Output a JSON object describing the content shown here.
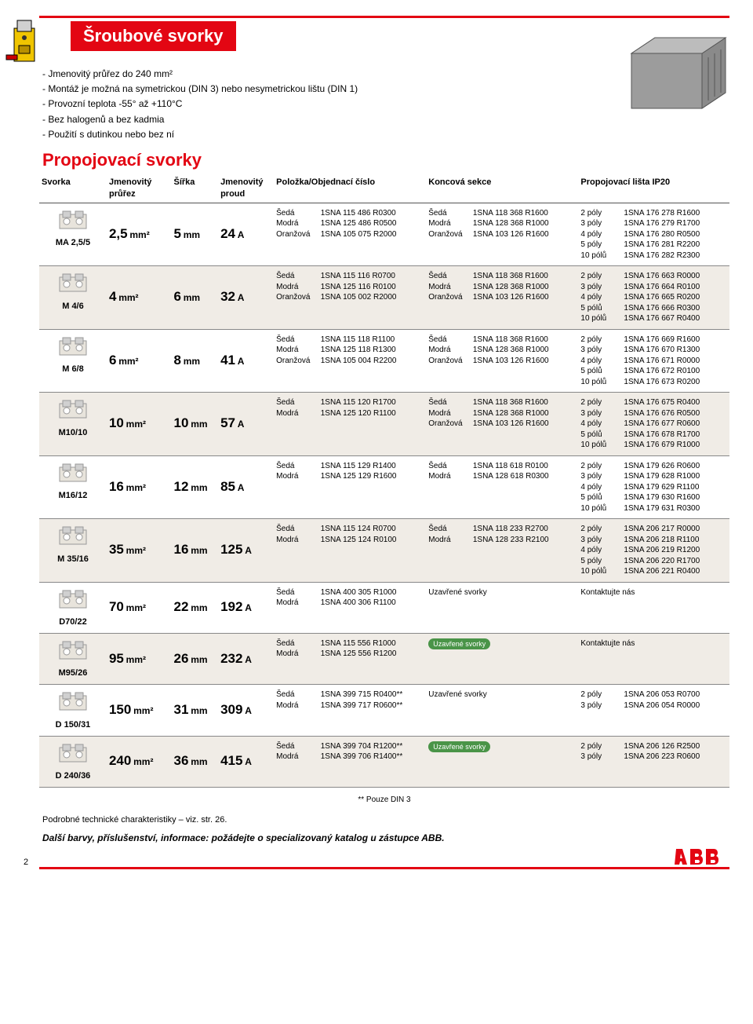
{
  "title": "Šroubové svorky",
  "intro": [
    "- Jmenovitý průřez do 240 mm²",
    "- Montáž je možná na symetrickou (DIN 3) nebo nesymetrickou lištu (DIN 1)",
    "- Provozní teplota -55° až +110°C",
    "- Bez halogenů a bez kadmia",
    "- Použití s dutinkou nebo bez ní"
  ],
  "subtitle": "Propojovací svorky",
  "headers": {
    "svorka": "Svorka",
    "prurez": "Jmenovitý průřez",
    "sirka": "Šířka",
    "proud": "Jmenovitý proud",
    "polozka": "Položka/Objednací číslo",
    "koncova": "Koncová sekce",
    "lista": "Propojovací lišta IP20"
  },
  "rows": [
    {
      "alt": false,
      "model": "MA 2,5/5",
      "prurez": "2,5 mm²",
      "sirka": "5 mm",
      "proud": "24 A",
      "pol": [
        [
          "Šedá",
          "1SNA 115 486 R0300"
        ],
        [
          "Modrá",
          "1SNA 125 486 R0500"
        ],
        [
          "Oranžová",
          "1SNA 105 075 R2000"
        ]
      ],
      "konc": [
        [
          "Šedá",
          "1SNA 118 368 R1600"
        ],
        [
          "Modrá",
          "1SNA 128 368 R1000"
        ],
        [
          "Oranžová",
          "1SNA 103 126 R1600"
        ]
      ],
      "list": [
        [
          "2 póly",
          "1SNA 176 278 R1600"
        ],
        [
          "3 póly",
          "1SNA 176 279 R1700"
        ],
        [
          "4 póly",
          "1SNA 176 280 R0500"
        ],
        [
          "5 póly",
          "1SNA 176 281 R2200"
        ],
        [
          "10 pólů",
          "1SNA 176 282 R2300"
        ]
      ]
    },
    {
      "alt": true,
      "model": "M 4/6",
      "prurez": "4 mm²",
      "sirka": "6 mm",
      "proud": "32 A",
      "pol": [
        [
          "Šedá",
          "1SNA 115 116 R0700"
        ],
        [
          "Modrá",
          "1SNA 125 116 R0100"
        ],
        [
          "Oranžová",
          "1SNA 105 002 R2000"
        ]
      ],
      "konc": [
        [
          "Šedá",
          "1SNA 118 368 R1600"
        ],
        [
          "Modrá",
          "1SNA 128 368 R1000"
        ],
        [
          "Oranžová",
          "1SNA 103 126 R1600"
        ]
      ],
      "list": [
        [
          "2 póly",
          "1SNA 176 663 R0000"
        ],
        [
          "3 póly",
          "1SNA 176 664 R0100"
        ],
        [
          "4 póly",
          "1SNA 176 665 R0200"
        ],
        [
          "5 pólů",
          "1SNA 176 666 R0300"
        ],
        [
          "10 pólů",
          "1SNA 176 667 R0400"
        ]
      ]
    },
    {
      "alt": false,
      "model": "M 6/8",
      "prurez": "6 mm²",
      "sirka": "8 mm",
      "proud": "41 A",
      "pol": [
        [
          "Šedá",
          "1SNA 115 118 R1100"
        ],
        [
          "Modrá",
          "1SNA 125 118 R1300"
        ],
        [
          "Oranžová",
          "1SNA 105 004 R2200"
        ]
      ],
      "konc": [
        [
          "Šedá",
          "1SNA 118 368 R1600"
        ],
        [
          "Modrá",
          "1SNA 128 368 R1000"
        ],
        [
          "Oranžová",
          "1SNA 103 126 R1600"
        ]
      ],
      "list": [
        [
          "2 póly",
          "1SNA 176 669 R1600"
        ],
        [
          "3 póly",
          "1SNA 176 670 R1300"
        ],
        [
          "4 póly",
          "1SNA 176 671 R0000"
        ],
        [
          "5 pólů",
          "1SNA 176 672 R0100"
        ],
        [
          "10 pólů",
          "1SNA 176 673 R0200"
        ]
      ]
    },
    {
      "alt": true,
      "model": "M10/10",
      "prurez": "10 mm²",
      "sirka": "10 mm",
      "proud": "57 A",
      "pol": [
        [
          "Šedá",
          "1SNA 115 120 R1700"
        ],
        [
          "Modrá",
          "1SNA 125 120 R1100"
        ]
      ],
      "konc": [
        [
          "Šedá",
          "1SNA 118 368 R1600"
        ],
        [
          "Modrá",
          "1SNA 128 368 R1000"
        ],
        [
          "Oranžová",
          "1SNA 103 126 R1600"
        ]
      ],
      "list": [
        [
          "2 póly",
          "1SNA 176 675 R0400"
        ],
        [
          "3 póly",
          "1SNA 176 676 R0500"
        ],
        [
          "4 póly",
          "1SNA 176 677 R0600"
        ],
        [
          "5 pólů",
          "1SNA 176 678 R1700"
        ],
        [
          "10 pólů",
          "1SNA 176 679 R1000"
        ]
      ]
    },
    {
      "alt": false,
      "model": "M16/12",
      "prurez": "16 mm²",
      "sirka": "12 mm",
      "proud": "85 A",
      "pol": [
        [
          "Šedá",
          "1SNA 115 129 R1400"
        ],
        [
          "Modrá",
          "1SNA 125 129 R1600"
        ]
      ],
      "konc": [
        [
          "Šedá",
          "1SNA 118 618 R0100"
        ],
        [
          "Modrá",
          "1SNA 128 618 R0300"
        ]
      ],
      "list": [
        [
          "2 póly",
          "1SNA 179 626 R0600"
        ],
        [
          "3 póly",
          "1SNA 179 628 R1000"
        ],
        [
          "4 póly",
          "1SNA 179 629 R1100"
        ],
        [
          "5 pólů",
          "1SNA 179 630 R1600"
        ],
        [
          "10 pólů",
          "1SNA 179 631 R0300"
        ]
      ]
    },
    {
      "alt": true,
      "model": "M 35/16",
      "prurez": "35 mm²",
      "sirka": "16 mm",
      "proud": "125 A",
      "pol": [
        [
          "Šedá",
          "1SNA 115 124 R0700"
        ],
        [
          "Modrá",
          "1SNA 125 124 R0100"
        ]
      ],
      "konc": [
        [
          "Šedá",
          "1SNA 118 233 R2700"
        ],
        [
          "Modrá",
          "1SNA 128 233 R2100"
        ]
      ],
      "list": [
        [
          "2 póly",
          "1SNA 206 217 R0000"
        ],
        [
          "3 póly",
          "1SNA 206 218 R1100"
        ],
        [
          "4 póly",
          "1SNA 206 219 R1200"
        ],
        [
          "5 póly",
          "1SNA 206 220 R1700"
        ],
        [
          "10 pólů",
          "1SNA 206 221 R0400"
        ]
      ]
    },
    {
      "alt": false,
      "model": "D70/22",
      "prurez": "70 mm²",
      "sirka": "22 mm",
      "proud": "192 A",
      "pol": [
        [
          "Šedá",
          "1SNA 400 305 R1000"
        ],
        [
          "Modrá",
          "1SNA 400 306 R1100"
        ]
      ],
      "konc_text": "Uzavřené svorky",
      "list_text": "Kontaktujte nás"
    },
    {
      "alt": true,
      "model": "M95/26",
      "prurez": "95 mm²",
      "sirka": "26 mm",
      "proud": "232 A",
      "pol": [
        [
          "Šedá",
          "1SNA 115 556 R1000"
        ],
        [
          "Modrá",
          "1SNA 125 556 R1200"
        ]
      ],
      "konc_text": "Uzavřené svorky",
      "list_text": "Kontaktujte nás",
      "green": true
    },
    {
      "alt": false,
      "model": "D 150/31",
      "prurez": "150 mm²",
      "sirka": "31 mm",
      "proud": "309 A",
      "pol": [
        [
          "Šedá",
          "1SNA 399 715 R0400**"
        ],
        [
          "Modrá",
          "1SNA 399 717 R0600**"
        ]
      ],
      "konc_text": "Uzavřené svorky",
      "list": [
        [
          "2 póly",
          "1SNA 206 053 R0700"
        ],
        [
          "3 póly",
          "1SNA 206 054 R0000"
        ]
      ]
    },
    {
      "alt": true,
      "model": "D 240/36",
      "prurez": "240 mm²",
      "sirka": "36 mm",
      "proud": "415 A",
      "pol": [
        [
          "Šedá",
          "1SNA 399 704 R1200**"
        ],
        [
          "Modrá",
          "1SNA 399 706 R1400**"
        ]
      ],
      "konc_text": "Uzavřené svorky",
      "green": true,
      "list": [
        [
          "2 póly",
          "1SNA 206 126 R2500"
        ],
        [
          "3 póly",
          "1SNA 206 223 R0600"
        ]
      ]
    }
  ],
  "footnote": "** Pouze DIN 3",
  "bottom_note": "Podrobné technické charakteristiky – viz. str. 26.",
  "bottom_bold": "Další barvy, příslušenství, informace: požádejte o specializovaný katalog u zástupce ABB.",
  "page_num": "2",
  "colors": {
    "accent": "#e30613",
    "alt_bg": "#f0ece6",
    "green": "#4a9448"
  }
}
